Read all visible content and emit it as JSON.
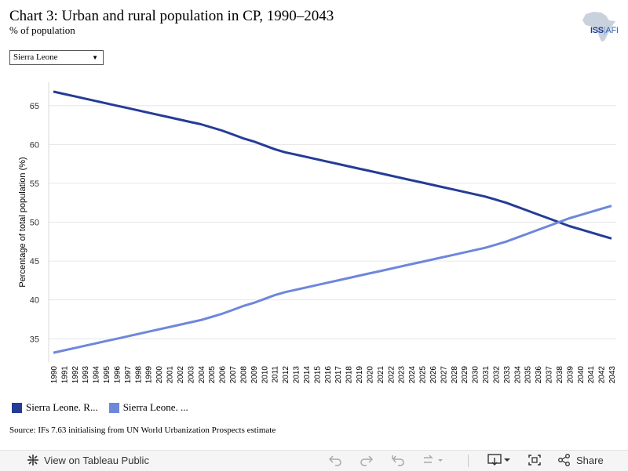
{
  "header": {
    "title": "Chart 3: Urban and rural population in CP, 1990–2043",
    "subtitle": "% of population"
  },
  "logo": {
    "text_main": "ISS",
    "text_sep": "|",
    "text_sub": "AFI"
  },
  "dropdown": {
    "selected": "Sierra Leone"
  },
  "chart_data": {
    "type": "line",
    "ylabel": "Percentage of total population (%)",
    "xlabel": "",
    "ylim": [
      32,
      68
    ],
    "yticks": [
      35,
      40,
      45,
      50,
      55,
      60,
      65
    ],
    "x": [
      "1990",
      "1991",
      "1992",
      "1993",
      "1994",
      "1995",
      "1996",
      "1997",
      "1998",
      "1999",
      "2000",
      "2001",
      "2002",
      "2003",
      "2004",
      "2005",
      "2006",
      "2007",
      "2008",
      "2009",
      "2010",
      "2011",
      "2012",
      "2013",
      "2014",
      "2015",
      "2016",
      "2017",
      "2018",
      "2019",
      "2020",
      "2021",
      "2022",
      "2023",
      "2024",
      "2025",
      "2026",
      "2027",
      "2028",
      "2029",
      "2030",
      "2031",
      "2032",
      "2033",
      "2034",
      "2035",
      "2036",
      "2037",
      "2038",
      "2039",
      "2040",
      "2041",
      "2042",
      "2043"
    ],
    "grid": true,
    "series": [
      {
        "name": "Sierra Leone. R...",
        "color": "#253c97",
        "values": [
          66.8,
          66.5,
          66.2,
          65.9,
          65.6,
          65.3,
          65.0,
          64.7,
          64.4,
          64.1,
          63.8,
          63.5,
          63.2,
          62.9,
          62.6,
          62.2,
          61.8,
          61.3,
          60.8,
          60.4,
          59.9,
          59.4,
          59.0,
          58.7,
          58.4,
          58.1,
          57.8,
          57.5,
          57.2,
          56.9,
          56.6,
          56.3,
          56.0,
          55.7,
          55.4,
          55.1,
          54.8,
          54.5,
          54.2,
          53.9,
          53.6,
          53.3,
          52.9,
          52.5,
          52.0,
          51.5,
          51.0,
          50.5,
          50.0,
          49.5,
          49.1,
          48.7,
          48.3,
          47.9
        ]
      },
      {
        "name": "Sierra Leone. ...",
        "color": "#6d87db",
        "values": [
          33.2,
          33.5,
          33.8,
          34.1,
          34.4,
          34.7,
          35.0,
          35.3,
          35.6,
          35.9,
          36.2,
          36.5,
          36.8,
          37.1,
          37.4,
          37.8,
          38.2,
          38.7,
          39.2,
          39.6,
          40.1,
          40.6,
          41.0,
          41.3,
          41.6,
          41.9,
          42.2,
          42.5,
          42.8,
          43.1,
          43.4,
          43.7,
          44.0,
          44.3,
          44.6,
          44.9,
          45.2,
          45.5,
          45.8,
          46.1,
          46.4,
          46.7,
          47.1,
          47.5,
          48.0,
          48.5,
          49.0,
          49.5,
          50.0,
          50.5,
          50.9,
          51.3,
          51.7,
          52.1
        ]
      }
    ]
  },
  "source": "Source: IFs 7.63 initialising from UN World Urbanization Prospects estimate",
  "toolbar": {
    "view_label": "View on Tableau Public",
    "share_label": "Share"
  }
}
